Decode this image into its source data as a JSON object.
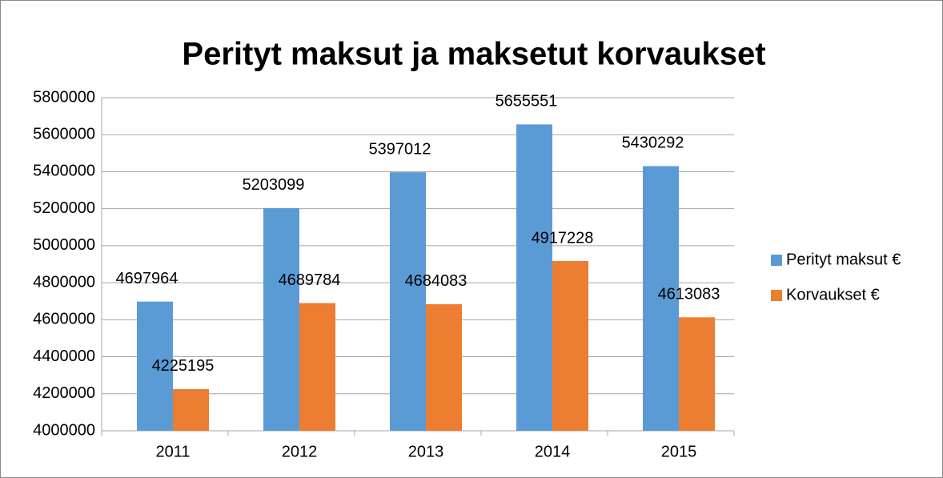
{
  "chart_data": {
    "type": "bar",
    "title": "Perityt maksut ja maksetut korvaukset",
    "categories": [
      "2011",
      "2012",
      "2013",
      "2014",
      "2015"
    ],
    "series": [
      {
        "name": "Perityt maksut €",
        "color": "#5b9bd5",
        "values": [
          4697964,
          5203099,
          5397012,
          5655551,
          5430292
        ]
      },
      {
        "name": "Korvaukset €",
        "color": "#ed7d31",
        "values": [
          4225195,
          4689784,
          4684083,
          4917228,
          4613083
        ]
      }
    ],
    "ylim": [
      4000000,
      5800000
    ],
    "yticks": [
      4000000,
      4200000,
      4400000,
      4600000,
      4800000,
      5000000,
      5200000,
      5400000,
      5600000,
      5800000
    ],
    "grid": true,
    "legend": "right"
  }
}
